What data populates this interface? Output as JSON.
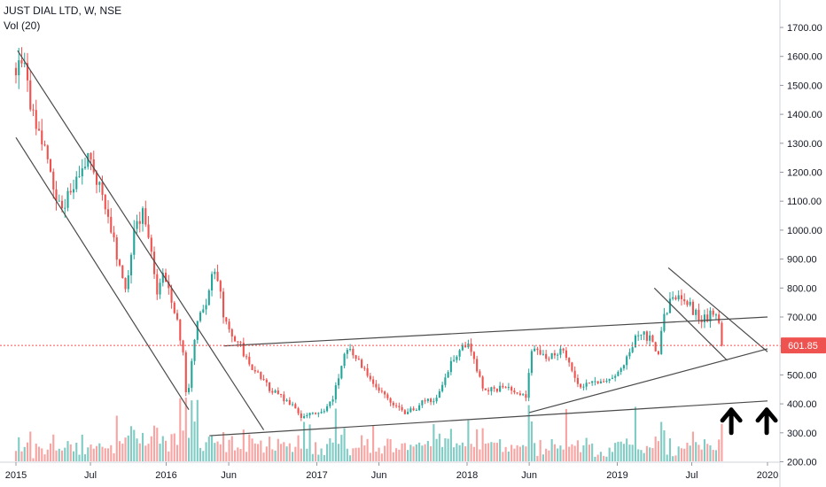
{
  "header": {
    "symbol_line": "JUST DIAL LTD, W, NSE",
    "volume_line": "Vol (20)"
  },
  "chart_data": {
    "type": "candlestick",
    "title": "JUST DIAL LTD, W, NSE",
    "ylim": [
      185,
      1780
    ],
    "y_ticks": [
      200,
      300,
      400,
      500,
      600,
      700,
      800,
      900,
      1000,
      1100,
      1200,
      1300,
      1400,
      1500,
      1600,
      1700
    ],
    "y_tick_labels": [
      "200.00",
      "300.00",
      "400.00",
      "500.00",
      "600.00",
      "700.00",
      "800.00",
      "900.00",
      "1000.00",
      "1100.00",
      "1200.00",
      "1300.00",
      "1400.00",
      "1500.00",
      "1600.00",
      "1700.00"
    ],
    "x_ticks": [
      {
        "date": "2015-01-01",
        "label": "2015"
      },
      {
        "date": "2015-07-01",
        "label": "Jul"
      },
      {
        "date": "2016-01-01",
        "label": "2016"
      },
      {
        "date": "2016-06-01",
        "label": "Jun"
      },
      {
        "date": "2017-01-01",
        "label": "2017"
      },
      {
        "date": "2017-06-01",
        "label": "Jun"
      },
      {
        "date": "2018-01-01",
        "label": "2018"
      },
      {
        "date": "2018-06-01",
        "label": "Jun"
      },
      {
        "date": "2019-01-01",
        "label": "2019"
      },
      {
        "date": "2019-07-01",
        "label": "Jul"
      },
      {
        "date": "2020-01-01",
        "label": "2020"
      }
    ],
    "last_price": "601.85",
    "price_path": [
      [
        "2015-01-01",
        1560
      ],
      [
        "2015-01-20",
        1590
      ],
      [
        "2015-02-10",
        1400
      ],
      [
        "2015-03-01",
        1330
      ],
      [
        "2015-03-20",
        1250
      ],
      [
        "2015-04-10",
        1110
      ],
      [
        "2015-04-25",
        1050
      ],
      [
        "2015-05-15",
        1160
      ],
      [
        "2015-06-05",
        1180
      ],
      [
        "2015-06-25",
        1270
      ],
      [
        "2015-07-10",
        1190
      ],
      [
        "2015-07-30",
        1130
      ],
      [
        "2015-08-20",
        1000
      ],
      [
        "2015-09-10",
        870
      ],
      [
        "2015-09-25",
        790
      ],
      [
        "2015-10-15",
        1000
      ],
      [
        "2015-11-05",
        1060
      ],
      [
        "2015-11-25",
        930
      ],
      [
        "2015-12-10",
        780
      ],
      [
        "2015-12-25",
        840
      ],
      [
        "2016-01-10",
        780
      ],
      [
        "2016-01-25",
        700
      ],
      [
        "2016-02-10",
        590
      ],
      [
        "2016-02-20",
        410
      ],
      [
        "2016-03-05",
        560
      ],
      [
        "2016-03-20",
        710
      ],
      [
        "2016-04-05",
        740
      ],
      [
        "2016-04-20",
        830
      ],
      [
        "2016-05-01",
        870
      ],
      [
        "2016-05-20",
        700
      ],
      [
        "2016-06-10",
        640
      ],
      [
        "2016-06-30",
        600
      ],
      [
        "2016-07-20",
        530
      ],
      [
        "2016-08-15",
        500
      ],
      [
        "2016-09-10",
        450
      ],
      [
        "2016-10-10",
        420
      ],
      [
        "2016-11-05",
        390
      ],
      [
        "2016-11-25",
        350
      ],
      [
        "2016-12-20",
        370
      ],
      [
        "2017-01-20",
        370
      ],
      [
        "2017-02-10",
        420
      ],
      [
        "2017-03-05",
        560
      ],
      [
        "2017-03-20",
        600
      ],
      [
        "2017-04-10",
        550
      ],
      [
        "2017-05-05",
        500
      ],
      [
        "2017-06-01",
        450
      ],
      [
        "2017-07-01",
        410
      ],
      [
        "2017-08-01",
        370
      ],
      [
        "2017-08-25",
        380
      ],
      [
        "2017-09-20",
        410
      ],
      [
        "2017-10-20",
        420
      ],
      [
        "2017-11-20",
        530
      ],
      [
        "2017-12-15",
        590
      ],
      [
        "2018-01-05",
        600
      ],
      [
        "2018-01-25",
        520
      ],
      [
        "2018-02-10",
        450
      ],
      [
        "2018-03-10",
        450
      ],
      [
        "2018-04-10",
        460
      ],
      [
        "2018-05-10",
        440
      ],
      [
        "2018-05-25",
        420
      ],
      [
        "2018-06-05",
        590
      ],
      [
        "2018-06-25",
        580
      ],
      [
        "2018-07-20",
        560
      ],
      [
        "2018-08-20",
        590
      ],
      [
        "2018-09-10",
        520
      ],
      [
        "2018-10-01",
        460
      ],
      [
        "2018-10-25",
        470
      ],
      [
        "2018-11-20",
        480
      ],
      [
        "2018-12-20",
        480
      ],
      [
        "2019-01-15",
        520
      ],
      [
        "2019-02-10",
        620
      ],
      [
        "2019-03-05",
        640
      ],
      [
        "2019-03-25",
        620
      ],
      [
        "2019-04-10",
        570
      ],
      [
        "2019-04-25",
        700
      ],
      [
        "2019-05-10",
        760
      ],
      [
        "2019-05-25",
        780
      ],
      [
        "2019-06-15",
        770
      ],
      [
        "2019-07-05",
        720
      ],
      [
        "2019-07-25",
        690
      ],
      [
        "2019-08-10",
        700
      ],
      [
        "2019-08-25",
        720
      ],
      [
        "2019-09-05",
        690
      ],
      [
        "2019-09-15",
        600
      ]
    ],
    "trendlines": [
      {
        "from": [
          "2015-01-01",
          1320
        ],
        "to": [
          "2016-02-25",
          380
        ]
      },
      {
        "from": [
          "2015-01-05",
          1620
        ],
        "to": [
          "2016-08-25",
          310
        ]
      },
      {
        "from": [
          "2016-04-15",
          290
        ],
        "to": [
          "2020-01-01",
          410
        ]
      },
      {
        "from": [
          "2016-05-20",
          600
        ],
        "to": [
          "2020-01-01",
          700
        ]
      },
      {
        "from": [
          "2018-06-01",
          370
        ],
        "to": [
          "2020-01-01",
          590
        ]
      },
      {
        "from": [
          "2019-04-01",
          800
        ],
        "to": [
          "2019-09-25",
          550
        ]
      },
      {
        "from": [
          "2019-05-05",
          870
        ],
        "to": [
          "2020-01-01",
          580
        ]
      }
    ],
    "annotations": [
      {
        "type": "arrow-up",
        "date": "2019-10-05",
        "price": 300
      },
      {
        "type": "arrow-up",
        "date": "2019-12-30",
        "price": 300
      }
    ],
    "colors": {
      "up": "#26a69a",
      "down": "#ef5350",
      "up_volume": "#80cbc4",
      "down_volume": "#f8a4a2",
      "price_line": "#ef5350",
      "trendline": "#4a4a4a"
    }
  }
}
